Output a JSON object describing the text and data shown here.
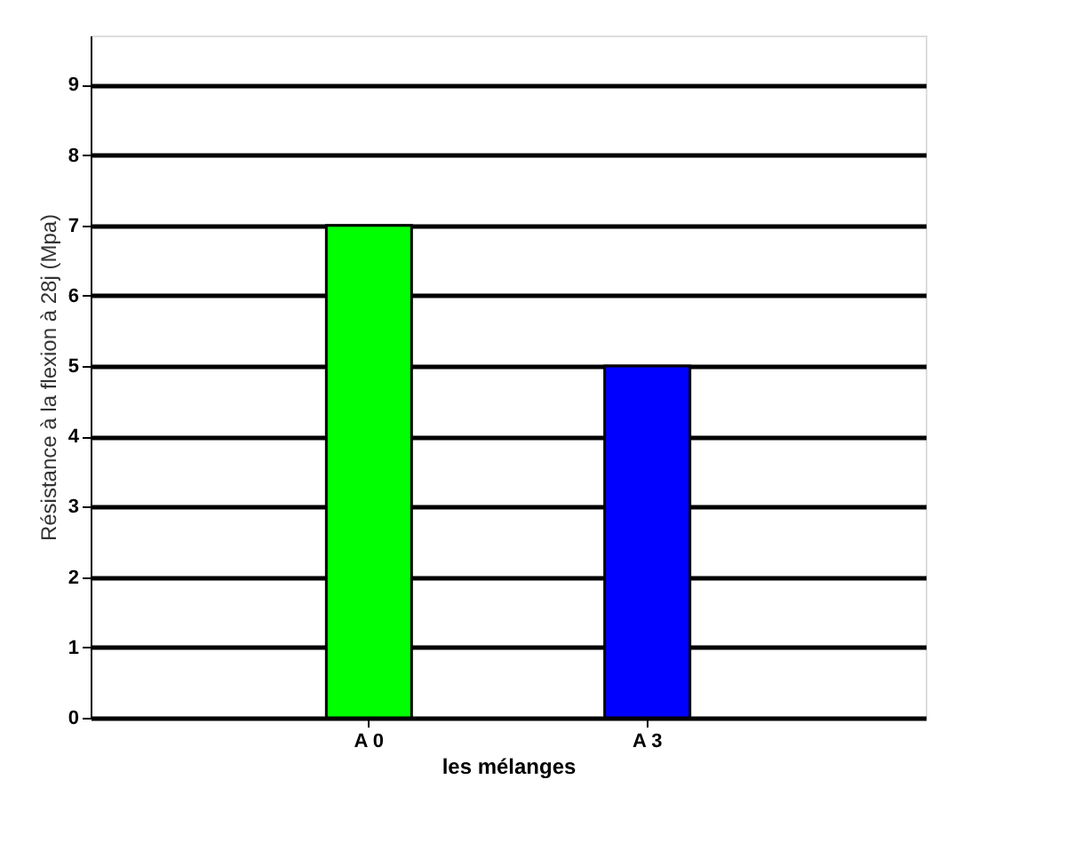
{
  "chart_data": {
    "type": "bar",
    "xlabel": "les mélanges",
    "ylabel": "Résistance à la flexion à 28j (Mpa)",
    "categories": [
      "A 0",
      "A 3"
    ],
    "values": [
      7,
      5
    ],
    "colors": [
      "#00ff00",
      "#0000ff"
    ],
    "ylim": [
      0,
      9.7
    ],
    "yticks": [
      0,
      1,
      2,
      3,
      4,
      5,
      6,
      7,
      8,
      9
    ],
    "grid": "y",
    "legend": false
  }
}
